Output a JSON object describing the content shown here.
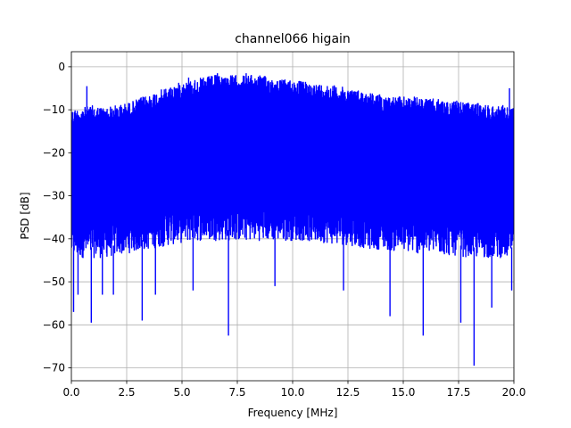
{
  "chart_data": {
    "type": "line",
    "title": "channel066 higain",
    "xlabel": "Frequency [MHz]",
    "ylabel": "PSD [dB]",
    "xlim": [
      0,
      20
    ],
    "ylim": [
      -73,
      3.5
    ],
    "xticks": [
      0,
      2.5,
      5,
      7.5,
      10,
      12.5,
      15,
      17.5,
      20
    ],
    "xtick_labels": [
      "0.0",
      "2.5",
      "5.0",
      "7.5",
      "10.0",
      "12.5",
      "15.0",
      "17.5",
      "20.0"
    ],
    "yticks": [
      0,
      -10,
      -20,
      -30,
      -40,
      -50,
      -60,
      -70
    ],
    "ytick_labels": [
      "0",
      "−10",
      "−20",
      "−30",
      "−40",
      "−50",
      "−60",
      "−70"
    ],
    "grid": true,
    "series": [
      {
        "color": "#0000ff",
        "envelope_x": [
          0,
          0.5,
          1,
          1.5,
          2,
          2.5,
          3,
          3.5,
          4,
          4.5,
          5,
          5.5,
          6,
          6.5,
          7,
          7.5,
          8,
          8.5,
          9,
          9.5,
          10,
          10.5,
          11,
          11.5,
          12,
          12.5,
          13,
          13.5,
          14,
          14.5,
          15,
          15.5,
          16,
          16.5,
          17,
          17.5,
          18,
          18.5,
          19,
          19.5,
          20
        ],
        "upper": [
          -10,
          -9.5,
          -9,
          -9.5,
          -9,
          -8.5,
          -7.5,
          -6.5,
          -5.5,
          -4.5,
          -3.5,
          -3,
          -2.5,
          -2,
          -2,
          -2,
          -2,
          -2,
          -2.5,
          -3,
          -3,
          -3.5,
          -4,
          -4,
          -4.5,
          -5,
          -5.5,
          -6,
          -6.5,
          -7,
          -7,
          -7,
          -7.5,
          -7.5,
          -8,
          -8,
          -8.5,
          -8.5,
          -9,
          -9,
          -9.5
        ],
        "lower_typical": [
          -42,
          -42,
          -42,
          -42,
          -41.5,
          -41,
          -40.5,
          -40,
          -39.5,
          -39,
          -38.5,
          -38,
          -38,
          -38,
          -38,
          -38,
          -38,
          -38,
          -38,
          -38,
          -38,
          -38,
          -38.5,
          -38.5,
          -39,
          -39,
          -39.5,
          -40,
          -40,
          -40.5,
          -40.5,
          -41,
          -41,
          -41,
          -41.5,
          -41.5,
          -42,
          -42,
          -42,
          -42,
          -42
        ],
        "peaks": [
          {
            "x": 0.7,
            "y": -4.5
          },
          {
            "x": 5.3,
            "y": -2.5
          },
          {
            "x": 6.6,
            "y": -1.5
          },
          {
            "x": 7.9,
            "y": -1.5
          },
          {
            "x": 19.8,
            "y": -5
          }
        ],
        "dips": [
          {
            "x": 0.1,
            "y": -57
          },
          {
            "x": 0.3,
            "y": -53
          },
          {
            "x": 0.9,
            "y": -59.5
          },
          {
            "x": 1.4,
            "y": -53
          },
          {
            "x": 1.9,
            "y": -53
          },
          {
            "x": 3.2,
            "y": -59
          },
          {
            "x": 3.8,
            "y": -53
          },
          {
            "x": 5.5,
            "y": -52
          },
          {
            "x": 7.1,
            "y": -62.5
          },
          {
            "x": 9.2,
            "y": -51
          },
          {
            "x": 12.3,
            "y": -52
          },
          {
            "x": 14.4,
            "y": -58
          },
          {
            "x": 15.9,
            "y": -62.5
          },
          {
            "x": 17.6,
            "y": -59.5
          },
          {
            "x": 18.2,
            "y": -69.5
          },
          {
            "x": 19.0,
            "y": -56
          },
          {
            "x": 19.9,
            "y": -52
          }
        ]
      }
    ]
  }
}
